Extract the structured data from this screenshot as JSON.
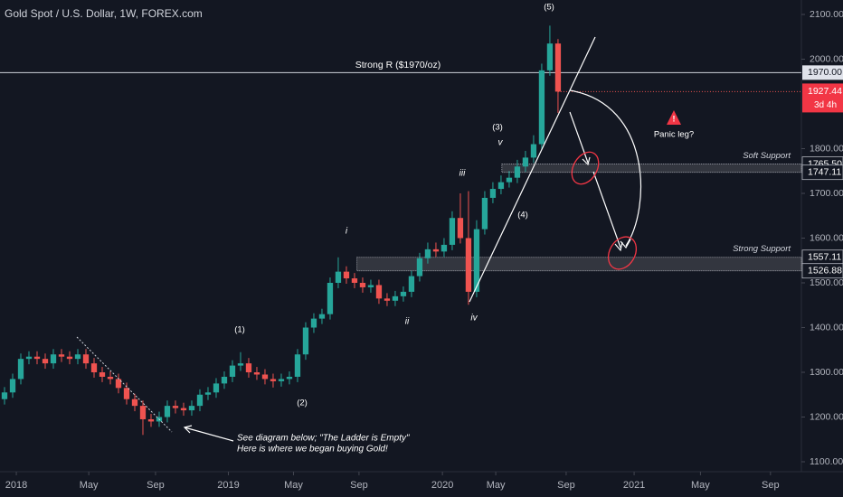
{
  "chart_data": {
    "type": "candlestick",
    "title": "Gold Spot / U.S. Dollar, 1W, FOREX.com",
    "up_color": "#26a69a",
    "down_color": "#ef5350",
    "open": [
      1240,
      1255,
      1285,
      1330,
      1335,
      1330,
      1320,
      1340,
      1335,
      1330,
      1340,
      1320,
      1300,
      1290,
      1285,
      1265,
      1240,
      1225,
      1195,
      1190,
      1200,
      1225,
      1220,
      1215,
      1225,
      1250,
      1255,
      1275,
      1290,
      1315,
      1320,
      1300,
      1295,
      1285,
      1280,
      1285,
      1290,
      1340,
      1400,
      1420,
      1430,
      1500,
      1525,
      1510,
      1500,
      1490,
      1495,
      1465,
      1460,
      1470,
      1480,
      1515,
      1555,
      1575,
      1570,
      1585,
      1645,
      1600,
      1480,
      1620,
      1690,
      1710,
      1725,
      1735,
      1760,
      1780,
      1810,
      1975,
      2035
    ],
    "high": [
      1267,
      1297,
      1342,
      1347,
      1347,
      1342,
      1352,
      1352,
      1347,
      1352,
      1352,
      1332,
      1312,
      1302,
      1297,
      1277,
      1252,
      1237,
      1207,
      1212,
      1237,
      1237,
      1232,
      1237,
      1262,
      1267,
      1287,
      1302,
      1327,
      1345,
      1332,
      1312,
      1307,
      1297,
      1297,
      1302,
      1352,
      1412,
      1432,
      1442,
      1512,
      1557,
      1537,
      1522,
      1512,
      1507,
      1507,
      1477,
      1482,
      1492,
      1527,
      1567,
      1590,
      1590,
      1600,
      1660,
      1700,
      1705,
      1640,
      1705,
      1725,
      1740,
      1750,
      1775,
      1795,
      1830,
      1990,
      2075,
      2045
    ],
    "low": [
      1228,
      1243,
      1273,
      1318,
      1318,
      1308,
      1308,
      1323,
      1318,
      1318,
      1308,
      1288,
      1278,
      1273,
      1253,
      1228,
      1213,
      1160,
      1178,
      1178,
      1188,
      1208,
      1203,
      1203,
      1213,
      1238,
      1243,
      1263,
      1278,
      1303,
      1288,
      1283,
      1273,
      1266,
      1268,
      1273,
      1278,
      1328,
      1388,
      1408,
      1418,
      1488,
      1498,
      1488,
      1478,
      1478,
      1453,
      1448,
      1448,
      1458,
      1468,
      1503,
      1543,
      1558,
      1558,
      1573,
      1588,
      1451,
      1468,
      1608,
      1678,
      1698,
      1713,
      1723,
      1748,
      1768,
      1798,
      1963,
      1880
    ],
    "close": [
      1255,
      1285,
      1330,
      1335,
      1330,
      1320,
      1340,
      1335,
      1330,
      1340,
      1320,
      1300,
      1290,
      1285,
      1265,
      1240,
      1225,
      1195,
      1190,
      1200,
      1225,
      1220,
      1215,
      1225,
      1250,
      1255,
      1275,
      1290,
      1315,
      1320,
      1300,
      1295,
      1285,
      1280,
      1285,
      1290,
      1340,
      1400,
      1420,
      1430,
      1500,
      1525,
      1510,
      1500,
      1490,
      1495,
      1465,
      1460,
      1470,
      1480,
      1515,
      1555,
      1575,
      1570,
      1585,
      1645,
      1600,
      1480,
      1620,
      1690,
      1710,
      1725,
      1735,
      1760,
      1780,
      1810,
      1975,
      2035,
      1927.44
    ],
    "xlim": [
      -0.556,
      97.9
    ],
    "xticks": [
      {
        "value": 1.45,
        "label": "2018"
      },
      {
        "value": 10.35,
        "label": "May"
      },
      {
        "value": 18.55,
        "label": "Sep"
      },
      {
        "value": 27.5,
        "label": "2019"
      },
      {
        "value": 35.5,
        "label": "May"
      },
      {
        "value": 43.55,
        "label": "Sep"
      },
      {
        "value": 53.8,
        "label": "2020"
      },
      {
        "value": 60.35,
        "label": "May"
      },
      {
        "value": 69,
        "label": "Sep"
      },
      {
        "value": 77.35,
        "label": "2021"
      },
      {
        "value": 85.5,
        "label": "May"
      },
      {
        "value": 94.1,
        "label": "Sep"
      }
    ],
    "ylim": [
      1077.8,
      2132.3
    ],
    "yticks": [
      {
        "value": 1100,
        "label": "1100.00"
      },
      {
        "value": 1200,
        "label": "1200.00"
      },
      {
        "value": 1300,
        "label": "1300.00"
      },
      {
        "value": 1400,
        "label": "1400.00"
      },
      {
        "value": 1500,
        "label": "1500.00"
      },
      {
        "value": 1600,
        "label": "1600.00"
      },
      {
        "value": 1700,
        "label": "1700.00"
      },
      {
        "value": 1800,
        "label": "1800.00"
      },
      {
        "value": 2000,
        "label": "2000.00"
      },
      {
        "value": 2100,
        "label": "2100.00"
      }
    ],
    "resistance": {
      "name": "Strong R ($1970/oz)",
      "value": 1970,
      "label": "1970.00"
    },
    "zones": [
      {
        "name": "Soft Support",
        "low": {
          "value": 1747.11,
          "label": "1747.11"
        },
        "high": {
          "value": 1765.5,
          "label": "1765.50"
        }
      },
      {
        "name": "Strong Support",
        "low": {
          "value": 1526.88,
          "label": "1526.88"
        },
        "high": {
          "value": 1557.11,
          "label": "1557.11"
        }
      }
    ],
    "last_price": {
      "value": 1927.44,
      "label": "1927.44"
    },
    "countdown": "3d 4h",
    "annotations": [
      "(5)",
      "(3)",
      "v",
      "iii",
      "(4)",
      "i",
      "ii",
      "iv",
      "(1)",
      "(2)",
      "Panic leg?",
      "See diagram below; \"The Ladder is Empty\"",
      "Here is where we began buying Gold!"
    ]
  }
}
